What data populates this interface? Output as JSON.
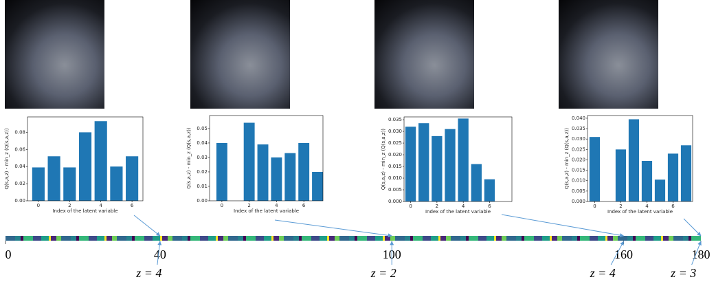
{
  "chart_data": [
    {
      "type": "bar",
      "ylabel": "Q(s,a,z) - min_z (Q(s,a,z))",
      "xlabel": "Index of the latent variable",
      "color": "#1f77b4",
      "x": [
        0,
        1,
        2,
        3,
        4,
        5,
        6
      ],
      "values": [
        0.039,
        0.052,
        0.039,
        0.08,
        0.093,
        0.04,
        0.052
      ],
      "xlim": [
        -0.7,
        6.7
      ],
      "xticks": [
        0,
        2,
        4,
        6
      ],
      "ylim": [
        0,
        0.098
      ],
      "yticks": [
        {
          "value": 0,
          "label": "0.00"
        },
        0.02,
        0.04,
        0.06,
        0.08
      ]
    },
    {
      "type": "bar",
      "ylabel": "Q(s,a,z) - min_z (Q(s,a,z))",
      "xlabel": "Index of the latent variable",
      "color": "#1f77b4",
      "x": [
        0,
        2,
        3,
        4,
        5,
        6,
        7
      ],
      "values": [
        0.04,
        0.054,
        0.039,
        0.03,
        0.033,
        0.04,
        0.02
      ],
      "xlim": [
        -0.9,
        7.4
      ],
      "xticks": [
        0,
        2,
        4,
        6
      ],
      "ylim": [
        0,
        0.059
      ],
      "yticks": [
        {
          "value": 0,
          "label": "0.00"
        },
        0.01,
        0.02,
        0.03,
        0.04,
        0.05
      ]
    },
    {
      "type": "bar",
      "ylabel": "Q(s,a,z) - min_z (Q(s,a,z))",
      "xlabel": "Index of the latent variable",
      "color": "#1f77b4",
      "x": [
        0,
        1,
        2,
        3,
        4,
        5,
        6
      ],
      "values": [
        0.032,
        0.0335,
        0.028,
        0.031,
        0.0355,
        0.016,
        0.0095
      ],
      "xlim": [
        -0.5,
        7.7
      ],
      "xticks": [
        0,
        2,
        4,
        6
      ],
      "ylim": [
        0,
        0.0362
      ],
      "yticks": [
        {
          "value": 0,
          "label": "0.000"
        },
        0.005,
        {
          "value": 0.01,
          "label": "0.010"
        },
        0.015,
        {
          "value": 0.02,
          "label": "0.020"
        },
        0.025,
        {
          "value": 0.03,
          "label": "0.030"
        },
        0.035
      ]
    },
    {
      "type": "bar",
      "ylabel": "Q(s,a,z) - min_z (Q(s,a,z))",
      "xlabel": "Index of the latent variable",
      "color": "#1f77b4",
      "x": [
        0,
        2,
        3,
        4,
        5,
        6,
        7
      ],
      "values": [
        0.031,
        0.025,
        0.0395,
        0.0195,
        0.0105,
        0.023,
        0.027
      ],
      "xlim": [
        -0.55,
        7.5
      ],
      "xticks": [
        0,
        2,
        4,
        6
      ],
      "ylim": [
        0,
        0.0413
      ],
      "yticks": [
        {
          "value": 0,
          "label": "0.000"
        },
        0.005,
        {
          "value": 0.01,
          "label": "0.010"
        },
        0.015,
        {
          "value": 0.02,
          "label": "0.020"
        },
        0.025,
        {
          "value": 0.03,
          "label": "0.030"
        },
        0.035,
        {
          "value": 0.04,
          "label": "0.040"
        }
      ]
    }
  ],
  "timeline": {
    "xlim": [
      0,
      180
    ],
    "xticks": [
      0,
      40,
      100,
      160,
      180
    ],
    "annotations": [
      {
        "label": "z = 4",
        "x": 40
      },
      {
        "label": "z = 2",
        "x": 100
      },
      {
        "label": "z = 4",
        "x": 160
      },
      {
        "label": "z = 3",
        "x": 180
      }
    ]
  }
}
